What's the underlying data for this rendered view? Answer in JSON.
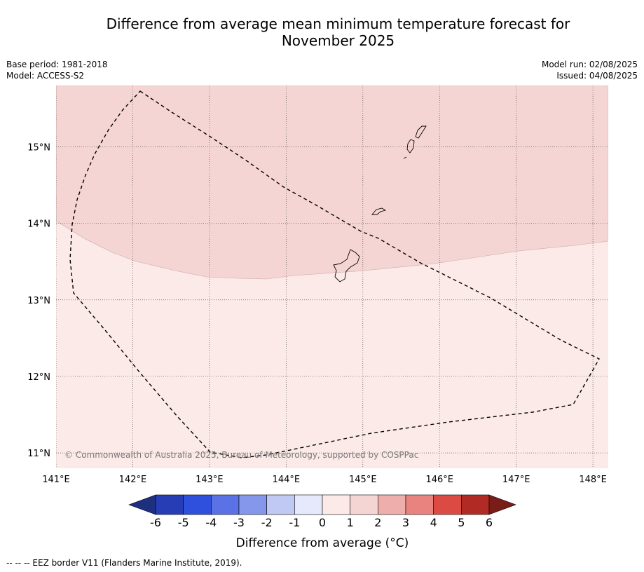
{
  "title": {
    "line1": "Difference from average mean minimum temperature forecast for",
    "line2": "November 2025"
  },
  "meta_left": {
    "base_period": "Base period: 1981-2018",
    "model": "Model: ACCESS-S2"
  },
  "meta_right": {
    "model_run": "Model run: 02/08/2025",
    "issued": "Issued: 04/08/2025"
  },
  "map": {
    "lon_range": [
      141.0,
      148.2
    ],
    "lat_range": [
      10.8,
      15.8
    ],
    "lon_ticks": [
      "141°E",
      "142°E",
      "143°E",
      "144°E",
      "145°E",
      "146°E",
      "147°E",
      "148°E"
    ],
    "lat_ticks": [
      "15°N",
      "14°N",
      "13°N",
      "12°N",
      "11°N"
    ],
    "copyright": "© Commonwealth of Australia 2025, Bureau of Meteorology, supported by COSPPac",
    "regions": [
      {
        "category": "1 to 2",
        "color": "#f5d5d3"
      },
      {
        "category": "0 to 1",
        "color": "#fbeae8"
      }
    ],
    "eez_border": "dashed",
    "islands": [
      "Guam",
      "Rota",
      "Tinian",
      "Saipan"
    ]
  },
  "colorbar": {
    "label": "Difference from average (°C)",
    "ticks": [
      "-6",
      "-5",
      "-4",
      "-3",
      "-2",
      "-1",
      "0",
      "1",
      "2",
      "3",
      "4",
      "5",
      "6"
    ],
    "extend_low_color": "#1e2f80",
    "extend_high_color": "#7a1c18",
    "colors": [
      "#273db5",
      "#2f4fdd",
      "#5a72e6",
      "#8597ea",
      "#c0c8f4",
      "#e5e9fb",
      "#fbeae8",
      "#f5d5d3",
      "#eeaeac",
      "#e8837f",
      "#dc4b43",
      "#b22a24"
    ]
  },
  "footer": "--  --  -- EEZ border V11 (Flanders Marine Institute, 2019)."
}
